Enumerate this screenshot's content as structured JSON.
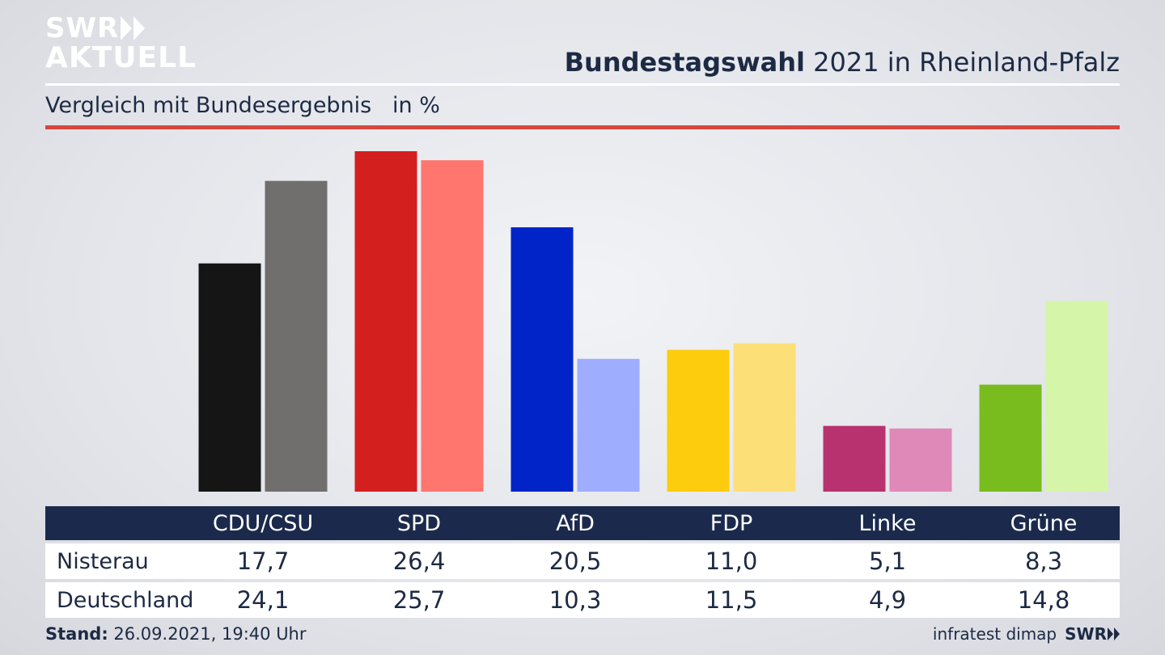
{
  "logo": {
    "line1": "SWR",
    "line2": "AKTUELL"
  },
  "title": {
    "bold": "Bundestagswahl",
    "rest": "2021 in Rheinland-Pfalz"
  },
  "subtitle": "Vergleich mit Bundesergebnis   in %",
  "footer": {
    "stand_label": "Stand:",
    "stand_value": "26.09.2021, 19:40 Uhr",
    "source": "infratest dimap",
    "brand": "SWR"
  },
  "chart_data": {
    "type": "bar",
    "categories": [
      "CDU/CSU",
      "SPD",
      "AfD",
      "FDP",
      "Linke",
      "Grüne"
    ],
    "series": [
      {
        "name": "Nisterau",
        "values": [
          17.7,
          26.4,
          20.5,
          11.0,
          5.1,
          8.3
        ],
        "labels": [
          "17,7",
          "26,4",
          "20,5",
          "11,0",
          "5,1",
          "8,3"
        ],
        "colors": [
          "#151515",
          "#d41f1f",
          "#0024c8",
          "#fdcc0d",
          "#b8326f",
          "#78bc1e"
        ]
      },
      {
        "name": "Deutschland",
        "values": [
          24.1,
          25.7,
          10.3,
          11.5,
          4.9,
          14.8
        ],
        "labels": [
          "24,1",
          "25,7",
          "10,3",
          "11,5",
          "4,9",
          "14,8"
        ],
        "colors": [
          "#706f6d",
          "#fe766e",
          "#9fadff",
          "#fddf77",
          "#df89b8",
          "#d5f6a8"
        ]
      }
    ],
    "ylim": [
      0,
      26.4
    ],
    "grid": false,
    "legend": "table-below"
  }
}
